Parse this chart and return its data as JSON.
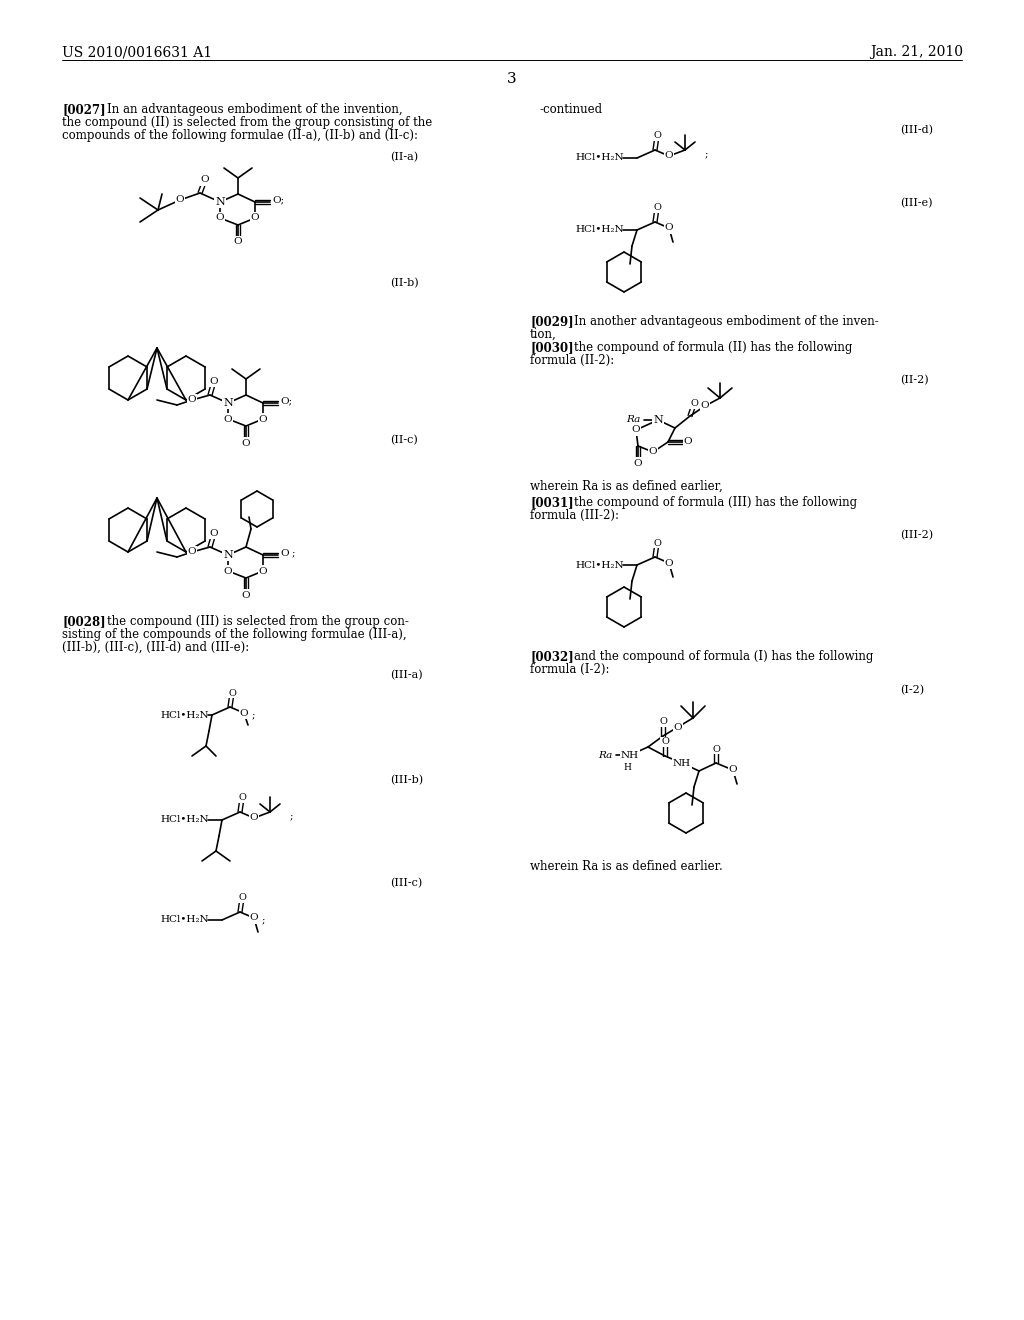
{
  "page_number": "3",
  "header_left": "US 2010/0016631 A1",
  "header_right": "Jan. 21, 2010",
  "bg": "#ffffff"
}
